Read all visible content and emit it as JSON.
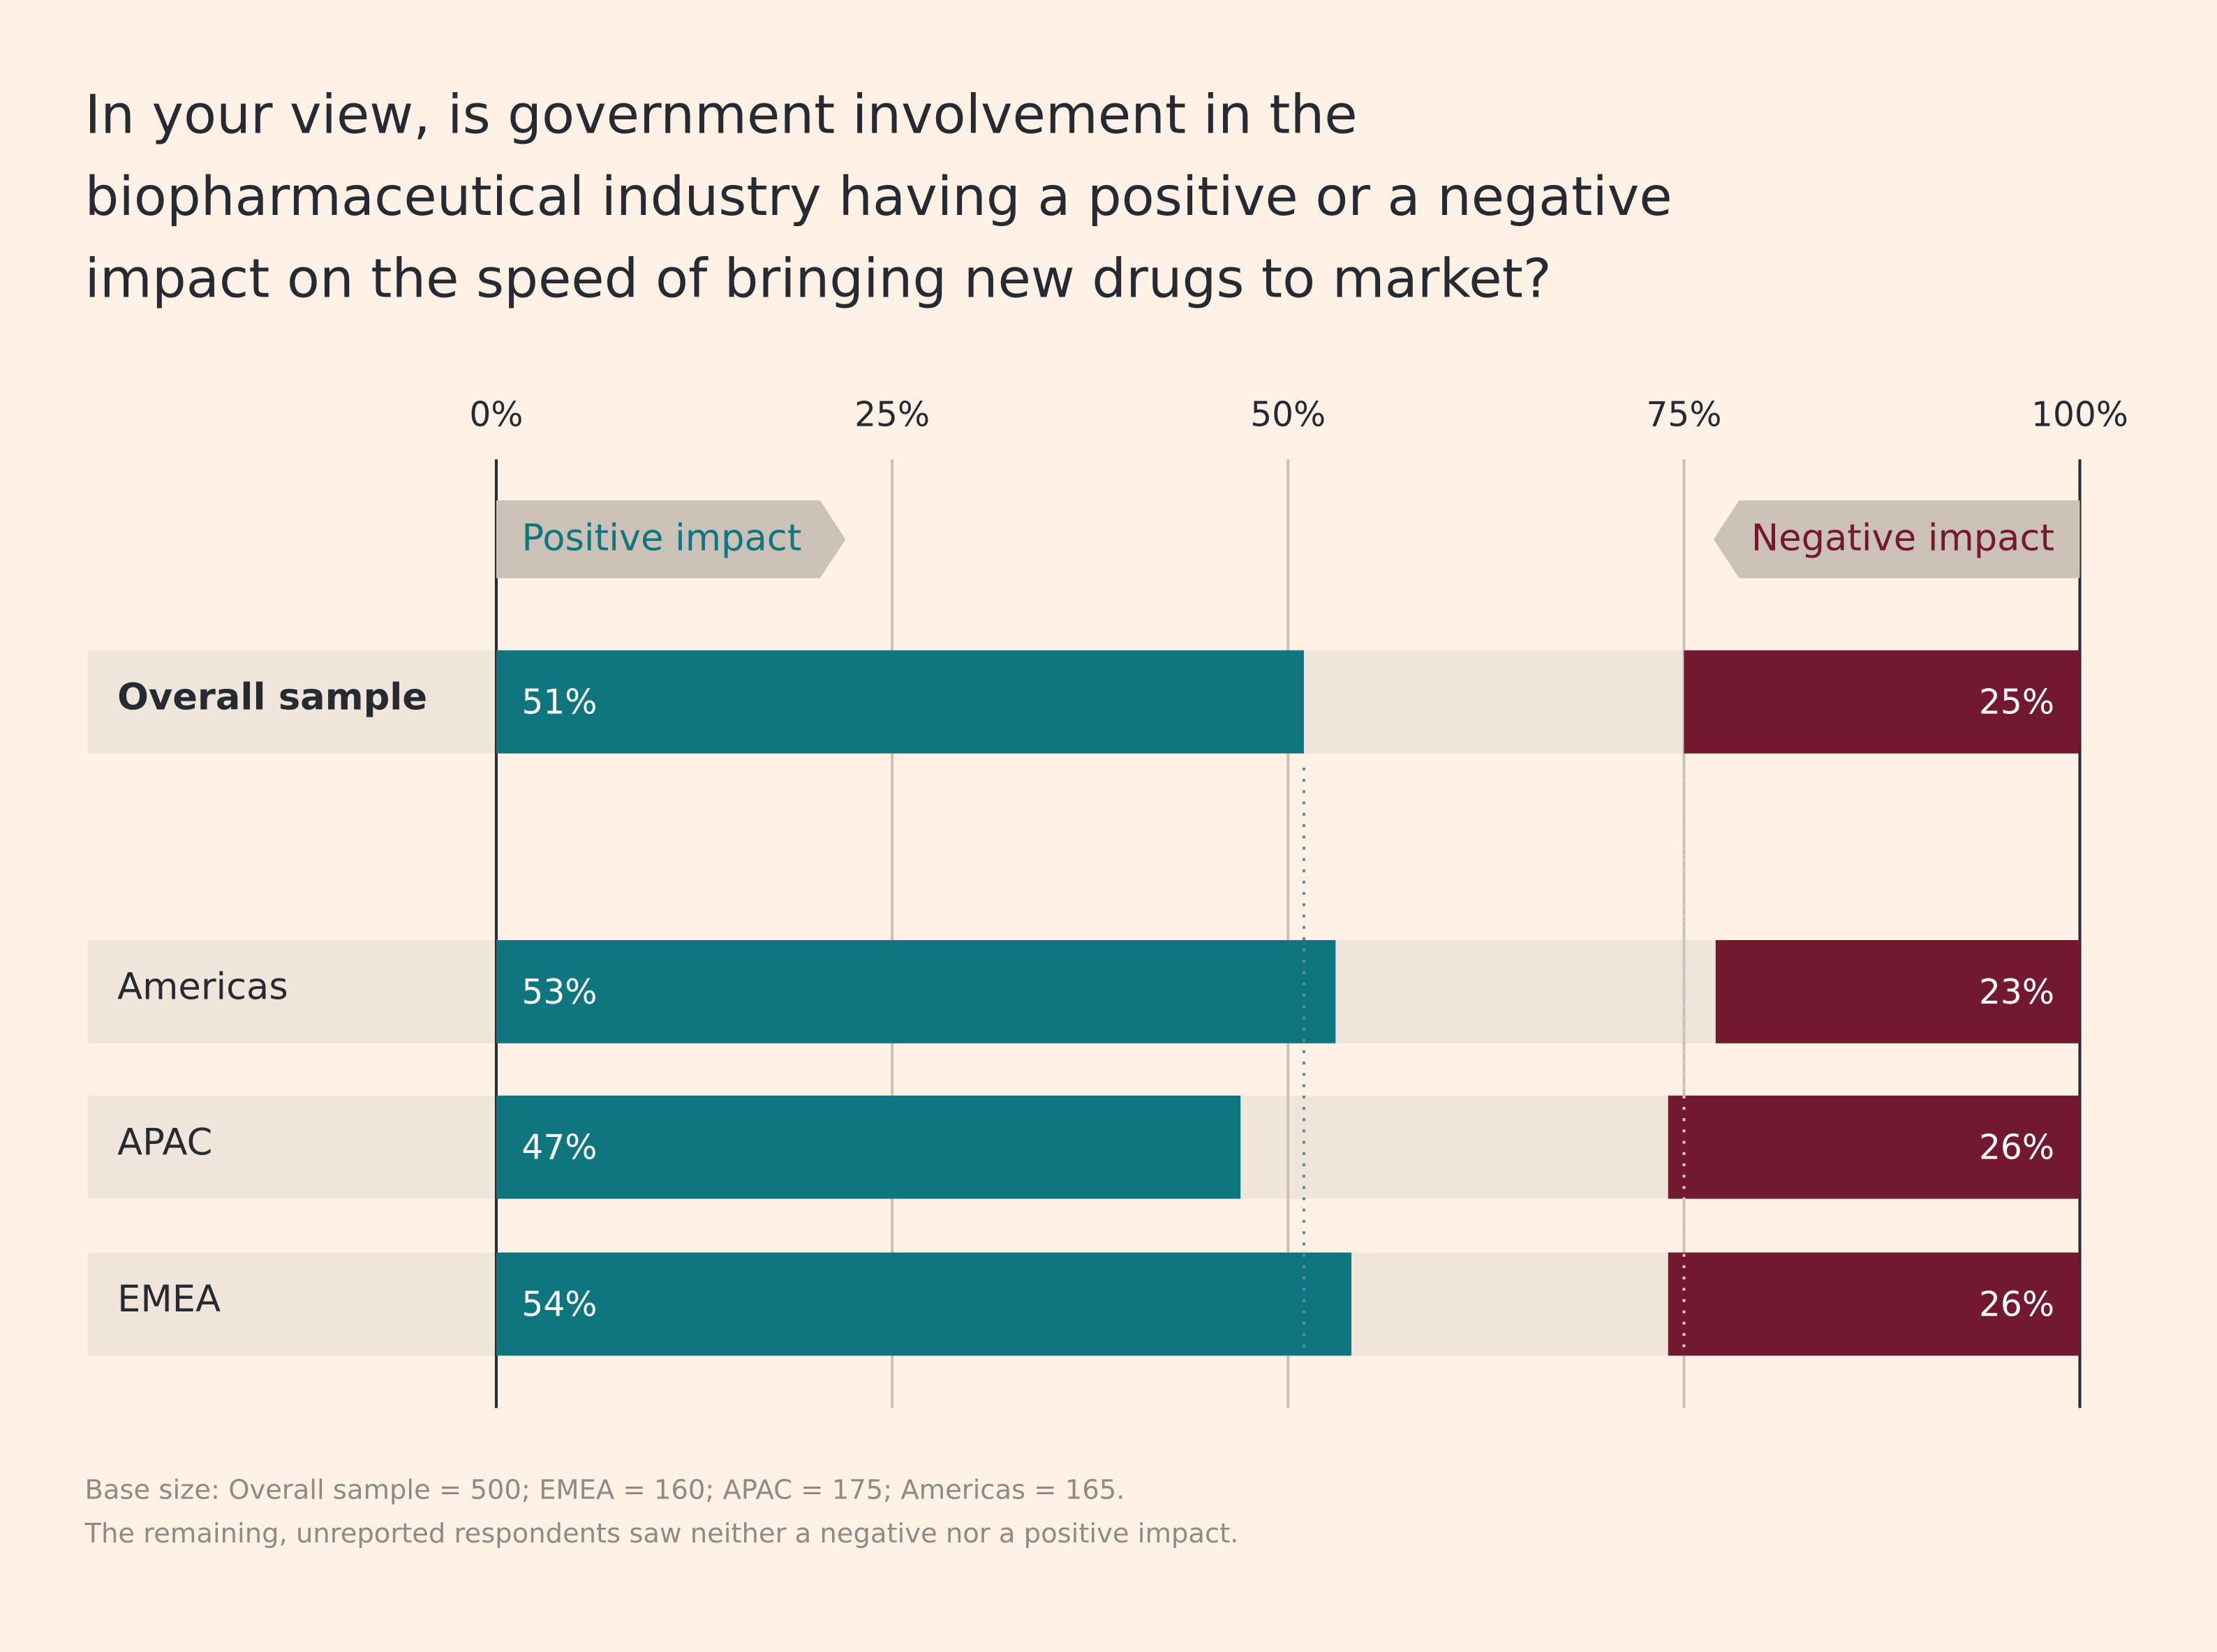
{
  "chart_data": {
    "type": "diverging-bar",
    "title": "In your view, is government involvement in the biopharmaceutical industry having a positive or a negative impact on the speed of bringing new drugs to market?",
    "categories": [
      "Overall sample",
      "Americas",
      "APAC",
      "EMEA"
    ],
    "series": [
      {
        "name": "Positive impact",
        "color": "#0f7680",
        "values": [
          51,
          53,
          47,
          54
        ],
        "value_labels": [
          "51%",
          "53%",
          "47%",
          "54%"
        ]
      },
      {
        "name": "Negative impact",
        "color": "#721830",
        "values": [
          25,
          23,
          26,
          26
        ],
        "value_labels": [
          "25%",
          "23%",
          "26%",
          "26%"
        ]
      }
    ],
    "xlim": [
      0,
      100
    ],
    "xticks": [
      {
        "value": 0,
        "label": "0%"
      },
      {
        "value": 25,
        "label": "25%"
      },
      {
        "value": 50,
        "label": "50%"
      },
      {
        "value": 75,
        "label": "75%"
      },
      {
        "value": 100,
        "label": "100%"
      }
    ],
    "grid": true,
    "notes": [
      "Base size: Overall sample = 500; EMEA = 160; APAC = 175; Americas = 165.",
      "The remaining, unreported respondents saw neither a negative nor a positive impact."
    ]
  }
}
